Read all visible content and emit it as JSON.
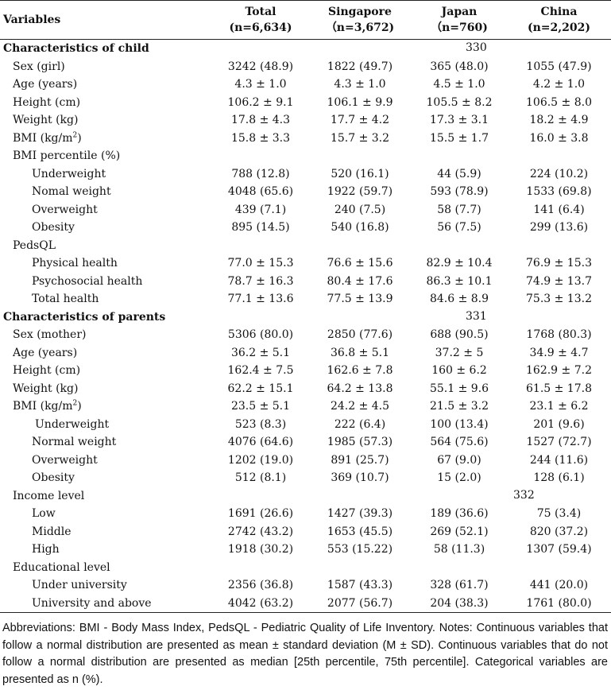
{
  "header": {
    "variables": "Variables",
    "cols": [
      {
        "name": "Total",
        "n": "(n=6,634)"
      },
      {
        "name": "Singapore",
        "n": "（n=3,672)"
      },
      {
        "name": "Japan",
        "n": "（n=760)"
      },
      {
        "name": "China",
        "n": "(n=2,202)"
      }
    ]
  },
  "line_numbers": [
    "330",
    "331",
    "332"
  ],
  "rows": [
    {
      "label": "Characteristics of child",
      "style": "sec",
      "values": [
        "",
        "",
        "",
        ""
      ]
    },
    {
      "label": "Sex (girl)",
      "style": "l1",
      "values": [
        "3242 (48.9)",
        "1822 (49.7)",
        "365 (48.0)",
        "1055 (47.9)"
      ]
    },
    {
      "label": "Age (years)",
      "style": "l1",
      "values": [
        "4.3 ± 1.0",
        "4.3 ± 1.0",
        "4.5 ± 1.0",
        "4.2 ± 1.0"
      ]
    },
    {
      "label": "Height (cm)",
      "style": "l1",
      "values": [
        "106.2 ± 9.1",
        "106.1 ± 9.9",
        "105.5 ± 8.2",
        "106.5 ± 8.0"
      ]
    },
    {
      "label": "Weight (kg)",
      "style": "l1",
      "values": [
        "17.8 ± 4.3",
        "17.7 ± 4.2",
        "17.3 ± 3.1",
        "18.2 ± 4.9"
      ]
    },
    {
      "label": "BMI (kg/m",
      "sup": "2",
      "tail": ")",
      "style": "l1",
      "values": [
        "15.8 ± 3.3",
        "15.7 ± 3.2",
        "15.5 ± 1.7",
        "16.0 ± 3.8"
      ]
    },
    {
      "label": "BMI percentile (%)",
      "style": "l1",
      "values": [
        "",
        "",
        "",
        ""
      ]
    },
    {
      "label": "Underweight",
      "style": "l2",
      "values": [
        "788 (12.8)",
        "520 (16.1)",
        "44 (5.9)",
        "224 (10.2)"
      ]
    },
    {
      "label": "Nomal weight",
      "style": "l2",
      "values": [
        "4048 (65.6)",
        "1922 (59.7)",
        "593 (78.9)",
        "1533 (69.8)"
      ]
    },
    {
      "label": "Overweight",
      "style": "l2",
      "values": [
        "439 (7.1)",
        "240 (7.5)",
        "58 (7.7)",
        "141 (6.4)"
      ]
    },
    {
      "label": "Obesity",
      "style": "l2",
      "values": [
        "895 (14.5)",
        "540 (16.8)",
        "56 (7.5)",
        "299 (13.6)"
      ]
    },
    {
      "label": "PedsQL",
      "style": "l1",
      "values": [
        "",
        "",
        "",
        ""
      ]
    },
    {
      "label": "Physical health",
      "style": "l2",
      "values": [
        "77.0 ± 15.3",
        "76.6 ± 15.6",
        "82.9 ± 10.4",
        "76.9 ± 15.3"
      ]
    },
    {
      "label": "Psychosocial health",
      "style": "l2",
      "values": [
        "78.7 ± 16.3",
        "80.4 ± 17.6",
        "86.3 ± 10.1",
        "74.9 ± 13.7"
      ]
    },
    {
      "label": "Total health",
      "style": "l2",
      "values": [
        "77.1 ± 13.6",
        "77.5 ± 13.9",
        "84.6 ± 8.9",
        "75.3 ± 13.2"
      ]
    },
    {
      "label": "Characteristics of parents",
      "style": "sec",
      "values": [
        "",
        "",
        "",
        ""
      ]
    },
    {
      "label": "Sex (mother)",
      "style": "l1",
      "values": [
        "5306 (80.0)",
        "2850 (77.6)",
        "688 (90.5)",
        "1768 (80.3)"
      ]
    },
    {
      "label": "Age (years)",
      "style": "l1",
      "values": [
        "36.2 ± 5.1",
        "36.8 ± 5.1",
        "37.2 ± 5",
        "34.9 ± 4.7"
      ]
    },
    {
      "label": "Height (cm)",
      "style": "l1",
      "values": [
        "162.4 ± 7.5",
        "162.6 ± 7.8",
        "160 ± 6.2",
        "162.9 ± 7.2"
      ]
    },
    {
      "label": "Weight (kg)",
      "style": "l1",
      "values": [
        "62.2 ± 15.1",
        "64.2 ± 13.8",
        "55.1 ± 9.6",
        "61.5 ± 17.8"
      ]
    },
    {
      "label": "BMI (kg/m",
      "sup": "2",
      "tail": ")",
      "style": "l1",
      "values": [
        "23.5 ± 5.1",
        "24.2 ± 4.5",
        "21.5 ± 3.2",
        "23.1 ± 6.2"
      ]
    },
    {
      "label": "Underweight",
      "style": "l2b",
      "values": [
        "523 (8.3)",
        "222 (6.4)",
        "100 (13.4)",
        "201 (9.6)"
      ]
    },
    {
      "label": "Normal weight",
      "style": "l2",
      "values": [
        "4076 (64.6)",
        "1985 (57.3)",
        "564 (75.6)",
        "1527 (72.7)"
      ]
    },
    {
      "label": "Overweight",
      "style": "l2",
      "values": [
        "1202 (19.0)",
        "891 (25.7)",
        "67 (9.0)",
        "244 (11.6)"
      ]
    },
    {
      "label": "Obesity",
      "style": "l2",
      "values": [
        "512 (8.1)",
        "369 (10.7)",
        "15 (2.0)",
        "128 (6.1)"
      ]
    },
    {
      "label": "Income level",
      "style": "l1",
      "values": [
        "",
        "",
        "",
        ""
      ]
    },
    {
      "label": "Low",
      "style": "l2",
      "values": [
        "1691 (26.6)",
        "1427 (39.3)",
        "189 (36.6)",
        "75 (3.4)"
      ]
    },
    {
      "label": "Middle",
      "style": "l2",
      "values": [
        "2742 (43.2)",
        "1653 (45.5)",
        "269 (52.1)",
        "820 (37.2)"
      ]
    },
    {
      "label": "High",
      "style": "l2",
      "values": [
        "1918 (30.2)",
        "553 (15.22)",
        "58 (11.3)",
        "1307 (59.4)"
      ]
    },
    {
      "label": "Educational level",
      "style": "l1",
      "values": [
        "",
        "",
        "",
        ""
      ]
    },
    {
      "label": "Under university",
      "style": "l2",
      "values": [
        "2356 (36.8)",
        "1587 (43.3)",
        "328 (61.7)",
        "441 (20.0)"
      ]
    },
    {
      "label": "University and above",
      "style": "l2",
      "values": [
        "4042 (63.2)",
        "2077 (56.7)",
        "204 (38.3)",
        "1761 (80.0)"
      ]
    }
  ],
  "notes": "Abbreviations: BMI - Body Mass Index, PedsQL - Pediatric Quality of Life Inventory. Notes: Continuous variables that follow a normal distribution are presented as mean ± standard deviation (M ± SD). Continuous variables that do not follow a normal distribution are presented as median [25th percentile, 75th percentile]. Categorical variables are presented as n (%)."
}
